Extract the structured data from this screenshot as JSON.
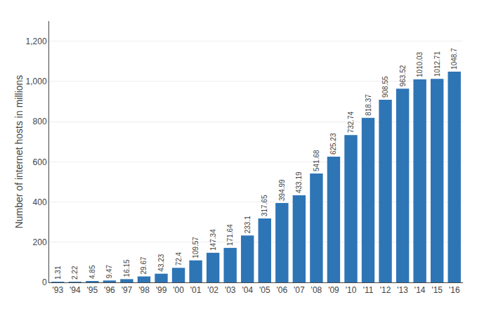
{
  "chart_data": {
    "type": "bar",
    "ylabel": "Number of internet hosts in millions",
    "categories": [
      "'93",
      "'94",
      "'95",
      "'96",
      "'97",
      "'98",
      "'99",
      "'00",
      "'01",
      "'02",
      "'03",
      "'04",
      "'05",
      "'06",
      "'07",
      "'08",
      "'09",
      "'10",
      "'11",
      "'12",
      "'13",
      "'14",
      "'15",
      "'16"
    ],
    "values": [
      1.31,
      2.22,
      4.85,
      9.47,
      16.15,
      29.67,
      43.23,
      72.4,
      109.57,
      147.34,
      171.64,
      233.1,
      317.65,
      394.99,
      433.19,
      541.68,
      625.23,
      732.74,
      818.37,
      908.55,
      963.52,
      1010.03,
      1012.71,
      1048.7
    ],
    "color": "#2e75b6",
    "ylim": [
      0,
      1300
    ],
    "yticks": [
      0,
      200,
      400,
      600,
      800,
      {
        "value": 1000,
        "label": "1,000"
      },
      {
        "value": 1200,
        "label": "1,200"
      }
    ],
    "grid": true,
    "data_labels": true
  }
}
